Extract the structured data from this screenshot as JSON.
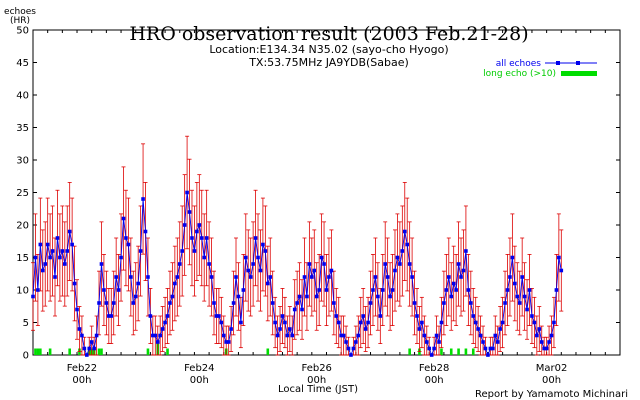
{
  "header": {
    "title": "HRO observation result (2003 Feb.21-28)",
    "location": "Location:E134.34 N35.02 (sayo-cho Hyogo)",
    "transmitter": "TX:53.75MHz JA9YDB(Sabae)"
  },
  "footer": {
    "credit": "Report by Yamamoto Michinari"
  },
  "legend": {
    "placement": "top-right",
    "all_echoes": "all echoes",
    "long_echo": "long echo (>10)"
  },
  "colors": {
    "series_line": "#0000ee",
    "error_bar": "#dd0000",
    "long_echo": "#00dd00",
    "axis": "#000000"
  },
  "chart_data": {
    "type": "line",
    "title": "HRO observation result (2003 Feb.21-28)",
    "ylabel": "echoes (HR)",
    "ylabel_line1": "echoes",
    "ylabel_line2": "(HR)",
    "xlabel": "Local Time (JST)",
    "ylim": [
      0,
      50
    ],
    "yticks": [
      0,
      5,
      10,
      15,
      20,
      25,
      30,
      35,
      40,
      45,
      50
    ],
    "xlim_hours": [
      -20,
      220
    ],
    "x_unit": "hours from 2003-02-22 00h JST",
    "xticks": [
      {
        "hour": 0,
        "line1": "Feb22",
        "line2": "00h"
      },
      {
        "hour": 48,
        "line1": "Feb24",
        "line2": "00h"
      },
      {
        "hour": 96,
        "line1": "Feb26",
        "line2": "00h"
      },
      {
        "hour": 144,
        "line1": "Feb28",
        "line2": "00h"
      },
      {
        "hour": 192,
        "line1": "Mar02",
        "line2": "00h"
      }
    ],
    "series": [
      {
        "name": "all echoes",
        "start_hour": -20,
        "step_hours": 1,
        "values": [
          9,
          15,
          10,
          17,
          13,
          14,
          17,
          15,
          16,
          12,
          18,
          15,
          16,
          14,
          16,
          19,
          17,
          11,
          7,
          4,
          3,
          1,
          0,
          1,
          2,
          1,
          3,
          8,
          14,
          10,
          8,
          6,
          6,
          8,
          12,
          10,
          15,
          21,
          18,
          17,
          12,
          8,
          9,
          11,
          16,
          24,
          19,
          12,
          6,
          3,
          3,
          2,
          3,
          4,
          5,
          6,
          8,
          9,
          11,
          12,
          14,
          16,
          20,
          25,
          22,
          18,
          16,
          19,
          20,
          18,
          15,
          18,
          14,
          12,
          8,
          6,
          6,
          5,
          3,
          2,
          2,
          4,
          8,
          12,
          9,
          5,
          10,
          15,
          13,
          12,
          14,
          18,
          15,
          13,
          17,
          16,
          11,
          12,
          8,
          5,
          3,
          4,
          6,
          5,
          3,
          4,
          3,
          7,
          8,
          9,
          7,
          12,
          9,
          14,
          12,
          13,
          9,
          10,
          15,
          14,
          10,
          12,
          13,
          8,
          6,
          5,
          3,
          3,
          2,
          1,
          0,
          1,
          2,
          3,
          5,
          6,
          4,
          5,
          8,
          10,
          12,
          9,
          6,
          10,
          14,
          12,
          9,
          10,
          13,
          15,
          14,
          16,
          19,
          17,
          14,
          12,
          8,
          6,
          4,
          5,
          3,
          2,
          1,
          0,
          1,
          3,
          2,
          5,
          8,
          10,
          12,
          9,
          11,
          10,
          14,
          12,
          13,
          16,
          10,
          8,
          6,
          5,
          4,
          3,
          2,
          1,
          0,
          1,
          1,
          3,
          2,
          4,
          5,
          8,
          10,
          12,
          15,
          11,
          9,
          8,
          12,
          9,
          7,
          10,
          6,
          5,
          3,
          4,
          2,
          1,
          1,
          2,
          3,
          5,
          10,
          15,
          13
        ]
      }
    ],
    "error_bar_halfwidth": "sqrt(3n)",
    "long_echo": [
      {
        "hour": -19,
        "value": 1
      },
      {
        "hour": -18,
        "value": 1
      },
      {
        "hour": -17,
        "value": 1
      },
      {
        "hour": -13,
        "value": 1
      },
      {
        "hour": -5,
        "value": 1
      },
      {
        "hour": -1,
        "value": 1
      },
      {
        "hour": 3,
        "value": 1
      },
      {
        "hour": 4,
        "value": 1
      },
      {
        "hour": 5,
        "value": 1
      },
      {
        "hour": 7,
        "value": 1
      },
      {
        "hour": 8,
        "value": 1
      },
      {
        "hour": 27,
        "value": 1
      },
      {
        "hour": 31,
        "value": 2
      },
      {
        "hour": 35,
        "value": 1
      },
      {
        "hour": 59,
        "value": 1
      },
      {
        "hour": 76,
        "value": 1
      },
      {
        "hour": 134,
        "value": 1
      },
      {
        "hour": 138,
        "value": 1
      },
      {
        "hour": 147,
        "value": 1
      },
      {
        "hour": 151,
        "value": 1
      },
      {
        "hour": 154,
        "value": 1
      },
      {
        "hour": 157,
        "value": 1
      },
      {
        "hour": 160,
        "value": 1
      }
    ]
  }
}
